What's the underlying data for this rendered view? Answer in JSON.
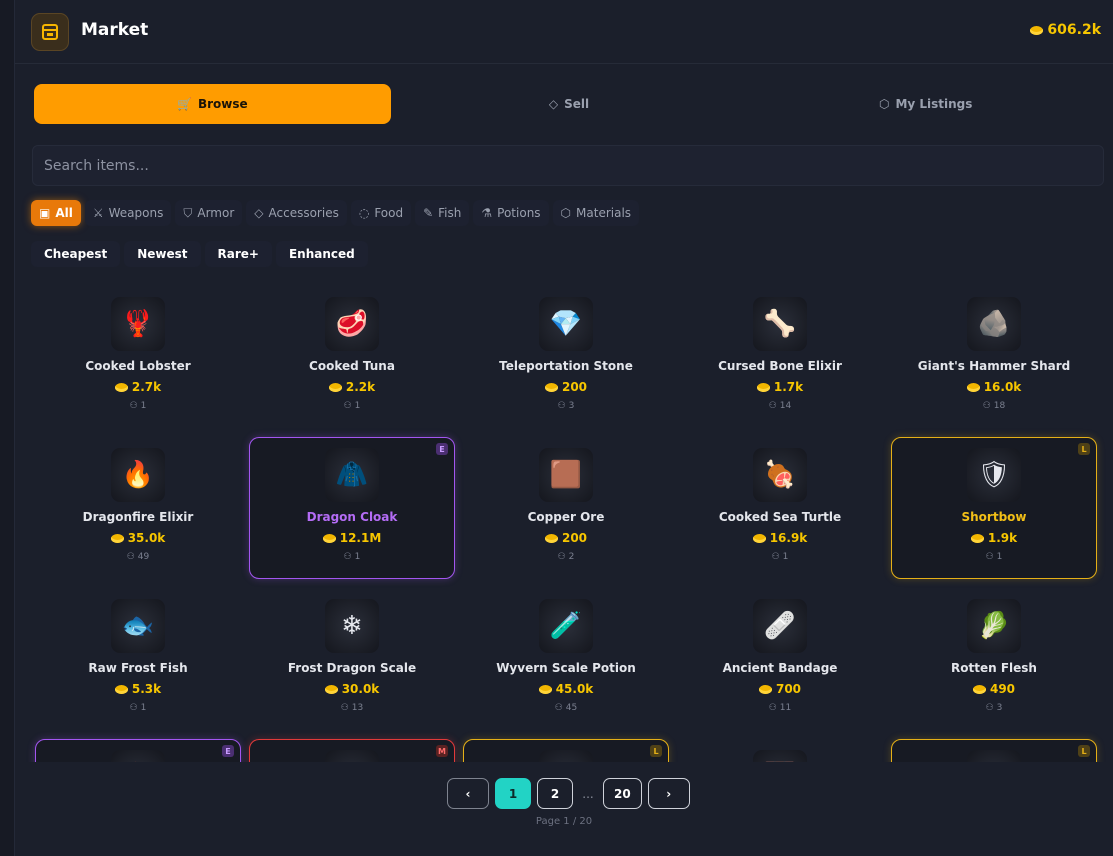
{
  "header": {
    "title": "Market",
    "gold": "606.2k",
    "icon": "store-icon"
  },
  "tabs": [
    {
      "label": "Browse",
      "icon": "cart-icon",
      "active": true
    },
    {
      "label": "Sell",
      "icon": "tag-icon"
    },
    {
      "label": "My Listings",
      "icon": "box-icon"
    }
  ],
  "search": {
    "placeholder": "Search items..."
  },
  "categories": [
    {
      "label": "All",
      "icon": "cube-icon",
      "active": true
    },
    {
      "label": "Weapons",
      "icon": "sword-icon"
    },
    {
      "label": "Armor",
      "icon": "shield-icon"
    },
    {
      "label": "Accessories",
      "icon": "diamond-icon"
    },
    {
      "label": "Food",
      "icon": "cookie-icon"
    },
    {
      "label": "Fish",
      "icon": "fish-icon"
    },
    {
      "label": "Potions",
      "icon": "flask-icon"
    },
    {
      "label": "Materials",
      "icon": "box-icon"
    }
  ],
  "sorts": [
    "Cheapest",
    "Newest",
    "Rare+",
    "Enhanced"
  ],
  "items": [
    {
      "name": "Cooked Lobster",
      "price": "2.7k",
      "qty": "1",
      "glyph": "🦞"
    },
    {
      "name": "Cooked Tuna",
      "price": "2.2k",
      "qty": "1",
      "glyph": "🥩"
    },
    {
      "name": "Teleportation Stone",
      "price": "200",
      "qty": "3",
      "glyph": "💎"
    },
    {
      "name": "Cursed Bone Elixir",
      "price": "1.7k",
      "qty": "14",
      "glyph": "🦴"
    },
    {
      "name": "Giant's Hammer Shard",
      "price": "16.0k",
      "qty": "18",
      "glyph": "🪨"
    },
    {
      "name": "Dragonfire Elixir",
      "price": "35.0k",
      "qty": "49",
      "glyph": "🔥"
    },
    {
      "name": "Dragon Cloak",
      "price": "12.1M",
      "qty": "1",
      "rarity": "E",
      "glyph": "🧥"
    },
    {
      "name": "Copper Ore",
      "price": "200",
      "qty": "2",
      "glyph": "🟫"
    },
    {
      "name": "Cooked Sea Turtle",
      "price": "16.9k",
      "qty": "1",
      "glyph": "🍖"
    },
    {
      "name": "Shortbow",
      "price": "1.9k",
      "qty": "1",
      "rarity": "L",
      "glyph": "🛡"
    },
    {
      "name": "Raw Frost Fish",
      "price": "5.3k",
      "qty": "1",
      "glyph": "🐟"
    },
    {
      "name": "Frost Dragon Scale",
      "price": "30.0k",
      "qty": "13",
      "glyph": "❄"
    },
    {
      "name": "Wyvern Scale Potion",
      "price": "45.0k",
      "qty": "45",
      "glyph": "🧪"
    },
    {
      "name": "Ancient Bandage",
      "price": "700",
      "qty": "11",
      "glyph": "🩹"
    },
    {
      "name": "Rotten Flesh",
      "price": "490",
      "qty": "3",
      "glyph": "🥬"
    },
    {
      "rarity": "E",
      "glyph": "🔥"
    },
    {
      "rarity": "M",
      "glyph": "⚔"
    },
    {
      "rarity": "L",
      "glyph": "📜"
    },
    {
      "glyph": "🧱"
    },
    {
      "rarity": "L",
      "glyph": "🌑"
    }
  ],
  "pagination": {
    "pages": [
      "1",
      "2",
      "20"
    ],
    "current": "1",
    "ellipsis": "...",
    "info": "Page 1 / 20"
  },
  "colors": {
    "accent": "#ff9c00",
    "gold": "#f7c600",
    "current_page": "#22d3c5",
    "epic": "#a356f0",
    "mythic": "#e23a3a",
    "legendary": "#e5b017"
  }
}
